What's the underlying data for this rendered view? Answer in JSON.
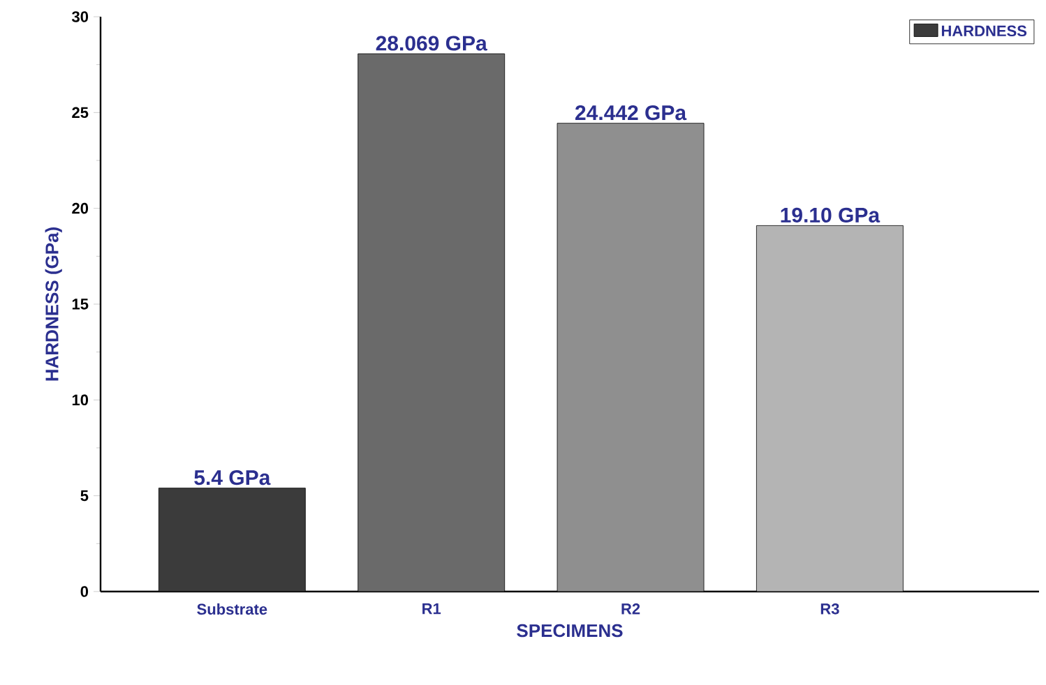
{
  "chart_data": {
    "type": "bar",
    "xlabel": "SPECIMENS",
    "ylabel": "HARDNESS (GPa)",
    "categories": [
      "Substrate",
      "R1",
      "R2",
      "R3"
    ],
    "series": [
      {
        "name": "HARDNESS",
        "colors": [
          "#3b3b3b",
          "#6a6a6a",
          "#8f8f8f",
          "#b4b4b4"
        ],
        "values": [
          5.4,
          28.069,
          24.442,
          19.1
        ],
        "value_labels": [
          "5.4 GPa",
          "28.069 GPa",
          "24.442 GPa",
          "19.10 GPa"
        ]
      }
    ],
    "ylim": [
      0,
      30
    ],
    "yticks": [
      0,
      5,
      10,
      15,
      20,
      25,
      30
    ],
    "legend": "top right",
    "grid": false
  }
}
